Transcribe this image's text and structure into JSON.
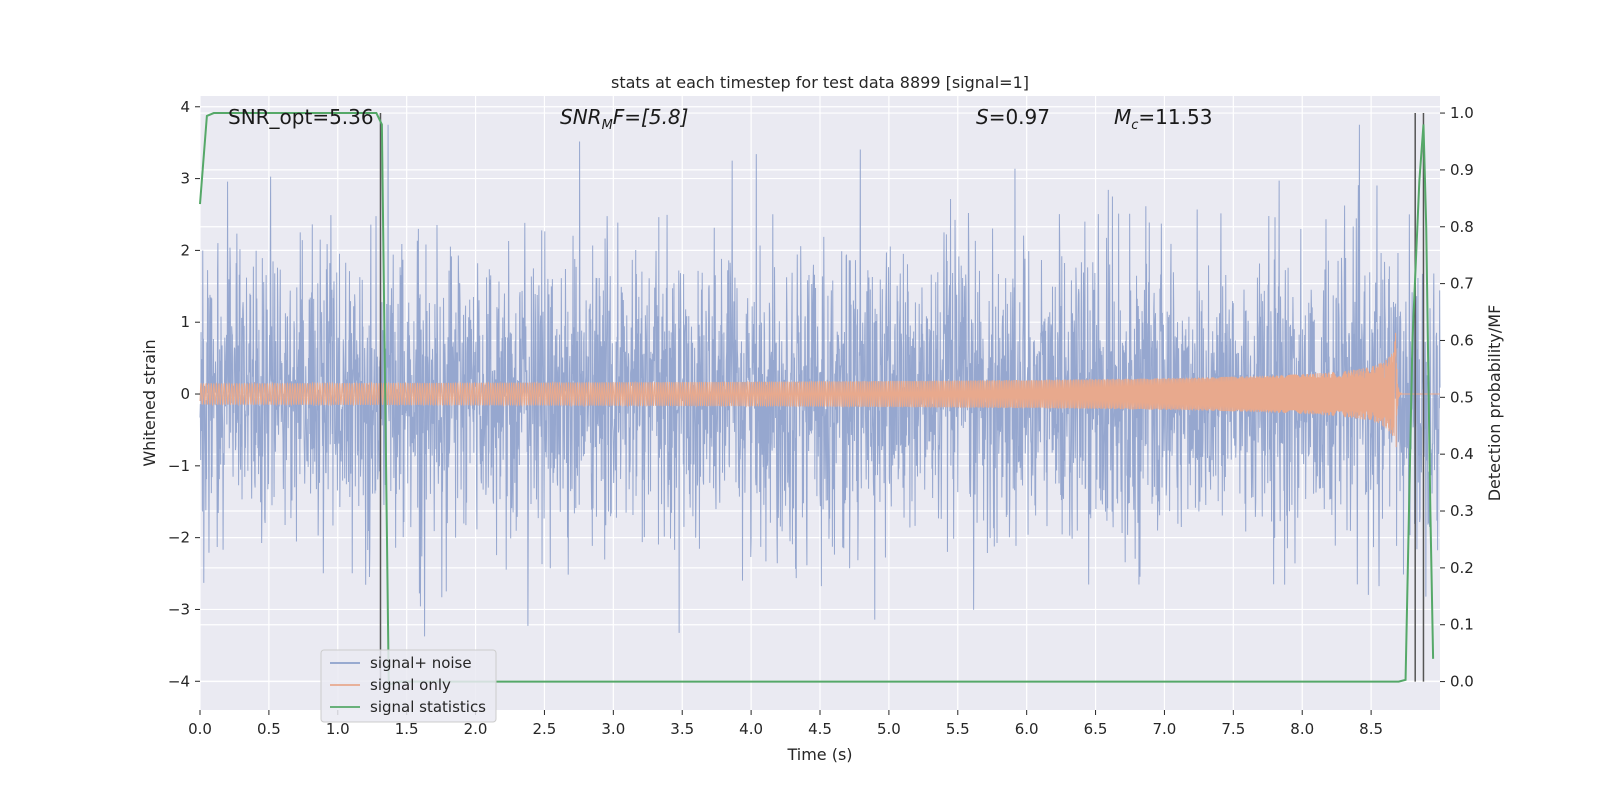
{
  "chart_data": {
    "type": "line",
    "title": "stats at each timestep for test data 8899 [signal=1]",
    "xlabel": "Time (s)",
    "ylabel_left": "Whitened strain",
    "ylabel_right": "Detection probability/MF",
    "xlim": [
      0.0,
      9.0
    ],
    "ylim_left": [
      -4.4,
      4.15
    ],
    "ylim_right": [
      -0.05,
      1.03
    ],
    "xticks": [
      "0.0",
      "0.5",
      "1.0",
      "1.5",
      "2.0",
      "2.5",
      "3.0",
      "3.5",
      "4.0",
      "4.5",
      "5.0",
      "5.5",
      "6.0",
      "6.5",
      "7.0",
      "7.5",
      "8.0",
      "8.5"
    ],
    "xtick_values": [
      0,
      0.5,
      1,
      1.5,
      2,
      2.5,
      3,
      3.5,
      4,
      4.5,
      5,
      5.5,
      6,
      6.5,
      7,
      7.5,
      8,
      8.5
    ],
    "yticks_left": [
      "−4",
      "−3",
      "−2",
      "−1",
      "0",
      "1",
      "2",
      "3",
      "4"
    ],
    "ytick_values_left": [
      -4,
      -3,
      -2,
      -1,
      0,
      1,
      2,
      3,
      4
    ],
    "yticks_right": [
      "0.0",
      "0.1",
      "0.2",
      "0.3",
      "0.4",
      "0.5",
      "0.6",
      "0.7",
      "0.8",
      "0.9",
      "1.0"
    ],
    "ytick_values_right": [
      0,
      0.1,
      0.2,
      0.3,
      0.4,
      0.5,
      0.6,
      0.7,
      0.8,
      0.9,
      1.0
    ],
    "grid": true,
    "legend_placement": "lower-left",
    "annotations": {
      "snr_opt": "SNR_opt=5.36",
      "snr_mf_base": "SNR",
      "snr_mf_sub": "M",
      "snr_mf_rest": "F=[5.8]",
      "s_sym": "S",
      "s_val": "=0.97",
      "mc_sym": "M",
      "mc_sub": "c",
      "mc_val": "=11.53"
    },
    "series": [
      {
        "name": "signal+ noise",
        "axis": "left",
        "color": "#8da0cb",
        "kind": "whitened_noise",
        "std": 1.0,
        "t_range": [
          0.0,
          9.0
        ]
      },
      {
        "name": "signal only",
        "axis": "left",
        "color": "#e8a98d",
        "kind": "chirp",
        "merger_time": 8.68,
        "peak_amplitude": 0.95,
        "ringdown_end": 8.72
      },
      {
        "name": "signal statistics",
        "axis": "right",
        "color": "#55a868",
        "x": [
          0.0,
          0.05,
          0.1,
          0.2,
          0.5,
          1.0,
          1.28,
          1.32,
          1.37,
          1.45,
          2.0,
          3.0,
          4.0,
          5.0,
          6.0,
          7.0,
          8.0,
          8.7,
          8.75,
          8.8,
          8.85,
          8.88,
          8.9,
          8.93,
          8.95
        ],
        "y": [
          0.84,
          0.995,
          1.0,
          1.0,
          1.0,
          1.0,
          1.0,
          0.98,
          -0.005,
          0.0,
          0.0,
          0.0,
          0.0,
          0.0,
          0.0,
          0.0,
          0.0,
          0.0,
          0.003,
          0.6,
          0.88,
          0.98,
          0.8,
          0.3,
          0.04
        ]
      }
    ],
    "vlines": [
      {
        "x": 1.31,
        "color": "#555555",
        "ymin": 0.0,
        "ymax": 1.0
      },
      {
        "x": 8.82,
        "color": "#555555",
        "ymin": 0.0,
        "ymax": 1.0
      },
      {
        "x": 8.88,
        "color": "#555555",
        "ymin": 0.0,
        "ymax": 1.0
      }
    ],
    "colors": {
      "plot_background": "#eaeaf2",
      "grid": "#ffffff",
      "noise": "#8da0cb",
      "signal": "#e8a98d",
      "stats": "#55a868"
    }
  }
}
